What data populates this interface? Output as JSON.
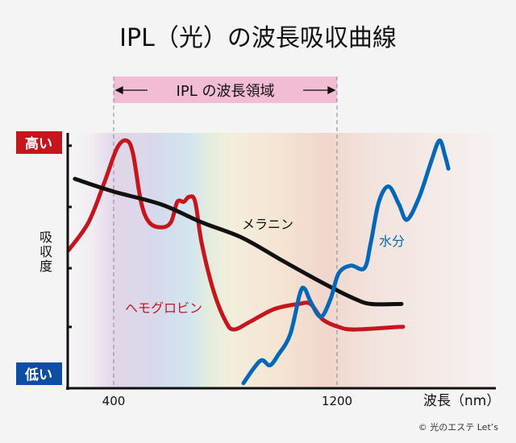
{
  "chart_data": {
    "type": "line",
    "title": "IPL（光）の波長吸収曲線",
    "xlabel": "波長（nm）",
    "ylabel": "吸収度",
    "y_high_label": "高い",
    "y_low_label": "低い",
    "xlim": [
      232,
      1770
    ],
    "ylim": [
      0,
      100
    ],
    "xticks": [
      400,
      1200
    ],
    "xtick_labels": [
      "400",
      "1200"
    ],
    "yticks": [
      24,
      47,
      71,
      95
    ],
    "grid": false,
    "ipl_band": {
      "label": "IPL の波長領域",
      "range": [
        400,
        1200
      ],
      "color": "#f2bcd4"
    },
    "series": [
      {
        "name": "ヘモグロビン",
        "color": "#c4161c",
        "x": [
          238,
          310,
          368,
          412,
          446,
          469,
          498,
          527,
          570,
          605,
          628,
          651,
          671,
          692,
          715,
          758,
          802,
          831,
          888,
          975,
          1062,
          1105,
          1148,
          1206,
          1264,
          1422,
          1431
        ],
        "y": [
          54,
          65,
          81,
          94,
          97,
          92,
          73,
          65,
          63,
          65,
          73,
          73,
          75,
          73,
          57,
          38,
          26,
          23,
          26,
          31,
          33,
          33,
          27,
          24,
          23,
          24,
          24
        ]
      },
      {
        "name": "メラニン",
        "color": "#111111",
        "x": [
          261,
          400,
          570,
          715,
          859,
          1004,
          1119,
          1206,
          1264,
          1321,
          1431
        ],
        "y": [
          82,
          77,
          72,
          65,
          59,
          50,
          43,
          38,
          35,
          33,
          33
        ]
      },
      {
        "name": "水分",
        "color": "#0068b7",
        "x": [
          865,
          903,
          931,
          960,
          989,
          1032,
          1067,
          1084,
          1105,
          1142,
          1177,
          1206,
          1249,
          1298,
          1321,
          1350,
          1385,
          1422,
          1451,
          1495,
          1538,
          1567,
          1587,
          1599
        ],
        "y": [
          2,
          8,
          11,
          9,
          13,
          21,
          37,
          39,
          34,
          28,
          35,
          45,
          48,
          47,
          57,
          73,
          79,
          72,
          66,
          75,
          89,
          97,
          91,
          86
        ]
      }
    ],
    "colors": {
      "high_badge": "#c4161c",
      "low_badge": "#0d4ea2"
    }
  },
  "copyright": "© 光のエステ Let’s"
}
